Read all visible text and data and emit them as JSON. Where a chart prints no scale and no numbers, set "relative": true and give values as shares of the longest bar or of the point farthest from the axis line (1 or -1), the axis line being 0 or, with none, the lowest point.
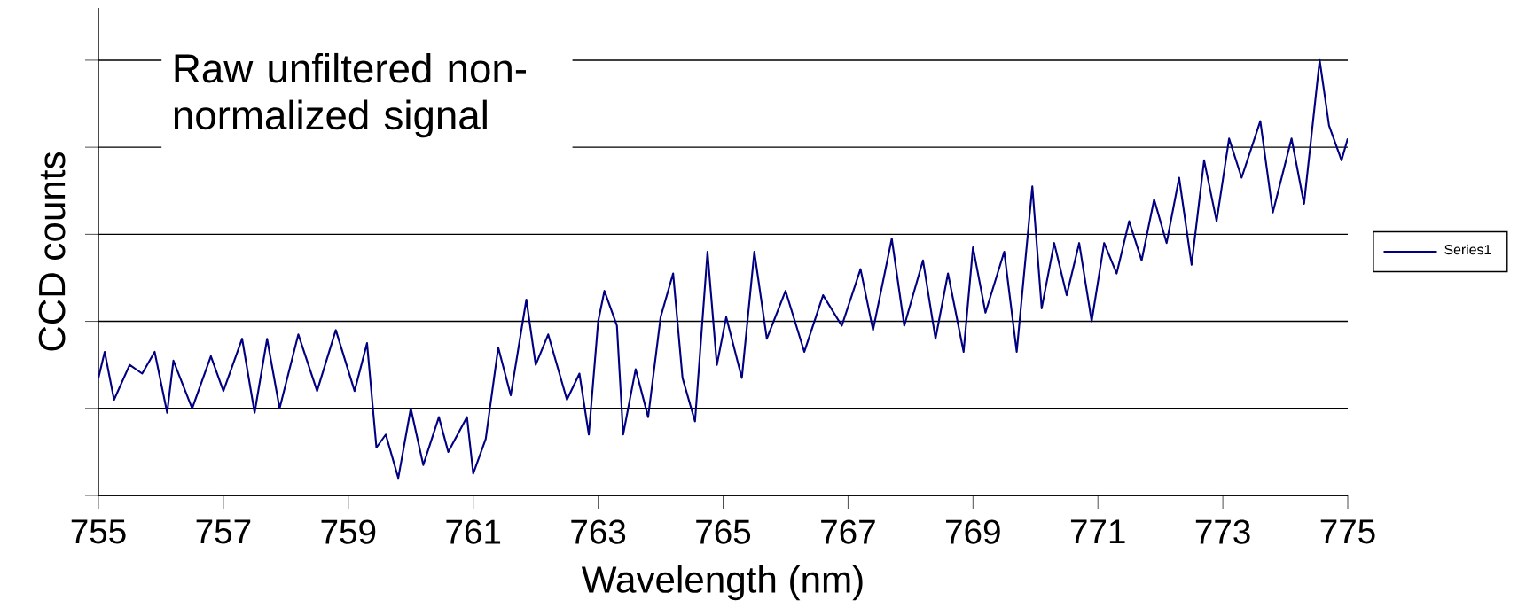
{
  "chart_data": {
    "type": "line",
    "relative": true,
    "xlabel": "Wavelength (nm)",
    "ylabel": "CCD counts",
    "annotations": [
      "Raw unfiltered non-normalized signal"
    ],
    "xlim": [
      755,
      775
    ],
    "xticks": [
      755,
      757,
      759,
      761,
      763,
      765,
      767,
      769,
      771,
      773,
      775
    ],
    "grid": "y",
    "legend": "right",
    "x": [
      755.0,
      755.1,
      755.25,
      755.5,
      755.7,
      755.9,
      756.1,
      756.2,
      756.5,
      756.8,
      757.0,
      757.3,
      757.5,
      757.7,
      757.9,
      758.2,
      758.5,
      758.8,
      759.1,
      759.3,
      759.45,
      759.6,
      759.8,
      760.0,
      760.2,
      760.45,
      760.6,
      760.9,
      761.0,
      761.2,
      761.4,
      761.6,
      761.85,
      762.0,
      762.2,
      762.5,
      762.7,
      762.85,
      763.0,
      763.1,
      763.3,
      763.4,
      763.6,
      763.8,
      764.0,
      764.2,
      764.35,
      764.55,
      764.75,
      764.9,
      765.05,
      765.3,
      765.5,
      765.7,
      766.0,
      766.3,
      766.6,
      766.9,
      767.2,
      767.4,
      767.7,
      767.9,
      768.2,
      768.4,
      768.6,
      768.85,
      769.0,
      769.2,
      769.5,
      769.7,
      769.95,
      770.1,
      770.3,
      770.5,
      770.7,
      770.9,
      771.1,
      771.3,
      771.5,
      771.7,
      771.9,
      772.1,
      772.3,
      772.5,
      772.7,
      772.9,
      773.1,
      773.3,
      773.6,
      773.8,
      774.1,
      774.3,
      774.55,
      774.7,
      774.9,
      775.0
    ],
    "series": [
      {
        "name": "Series1",
        "color": "#000080",
        "values": [
          0.27,
          0.33,
          0.22,
          0.3,
          0.28,
          0.33,
          0.19,
          0.31,
          0.2,
          0.32,
          0.24,
          0.36,
          0.19,
          0.36,
          0.2,
          0.37,
          0.24,
          0.38,
          0.24,
          0.35,
          0.11,
          0.14,
          0.04,
          0.2,
          0.07,
          0.18,
          0.1,
          0.18,
          0.05,
          0.13,
          0.34,
          0.23,
          0.45,
          0.3,
          0.37,
          0.22,
          0.28,
          0.14,
          0.4,
          0.47,
          0.39,
          0.14,
          0.29,
          0.18,
          0.41,
          0.51,
          0.27,
          0.17,
          0.56,
          0.3,
          0.41,
          0.27,
          0.56,
          0.36,
          0.47,
          0.33,
          0.46,
          0.39,
          0.52,
          0.38,
          0.59,
          0.39,
          0.54,
          0.36,
          0.51,
          0.33,
          0.57,
          0.42,
          0.56,
          0.33,
          0.71,
          0.43,
          0.58,
          0.46,
          0.58,
          0.4,
          0.58,
          0.51,
          0.63,
          0.54,
          0.68,
          0.58,
          0.73,
          0.53,
          0.77,
          0.63,
          0.82,
          0.73,
          0.86,
          0.65,
          0.82,
          0.67,
          1,
          0.85,
          0.77,
          0.82
        ]
      }
    ]
  }
}
